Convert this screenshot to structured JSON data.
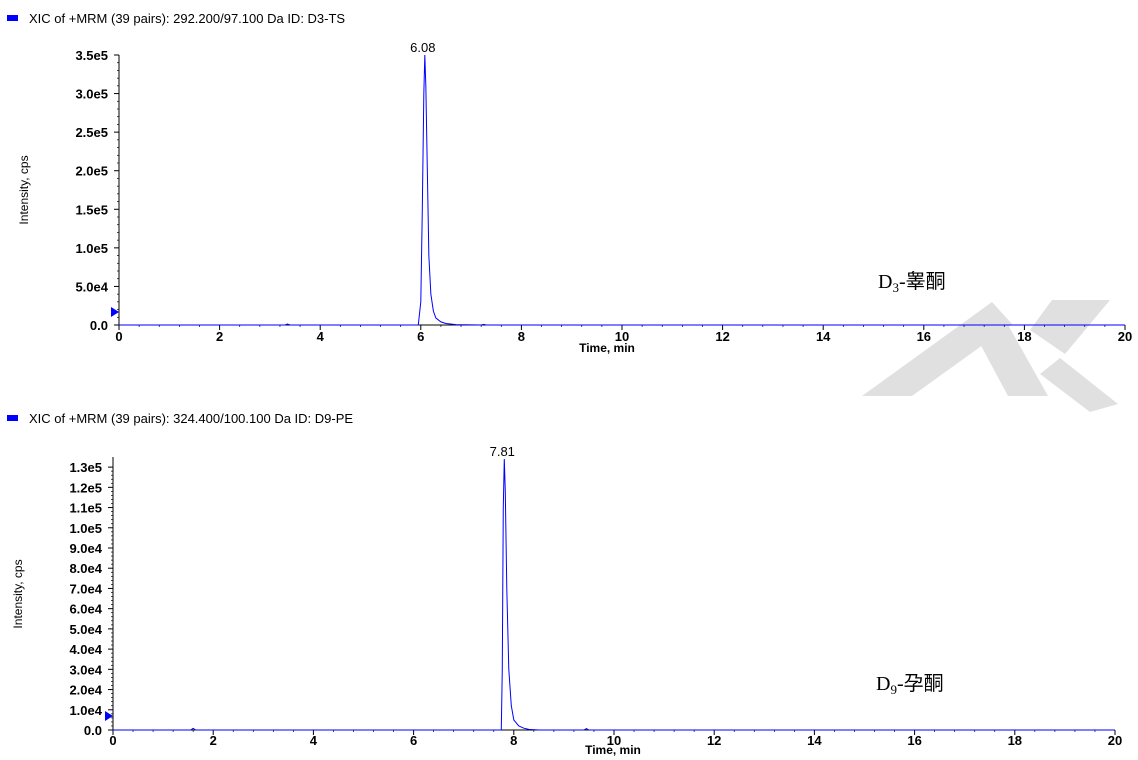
{
  "colors": {
    "trace": "#0000ff",
    "legend": "#0000ff",
    "axis": "#000000",
    "watermark": "#e0e0e0"
  },
  "chart_data": [
    {
      "type": "line",
      "title": "XIC of +MRM (39 pairs): 292.200/97.100 Da ID: D3-TS",
      "xlabel": "Time, min",
      "ylabel": "Intensity, cps",
      "xlim": [
        0,
        20
      ],
      "ylim": [
        0,
        350000
      ],
      "x_ticks": [
        "0",
        "2",
        "4",
        "6",
        "8",
        "10",
        "12",
        "14",
        "16",
        "18",
        "20"
      ],
      "y_ticks": [
        "0.0",
        "5.0e4",
        "1.0e5",
        "1.5e5",
        "2.0e5",
        "2.5e5",
        "3.0e5",
        "3.5e5"
      ],
      "peak_label": "6.08",
      "annotation": {
        "main": "D",
        "sub": "3",
        "rest": "-睾酮"
      },
      "series": [
        {
          "x": [
            0,
            3.3,
            3.35,
            3.4,
            5.95,
            6.0,
            6.03,
            6.06,
            6.08,
            6.1,
            6.13,
            6.16,
            6.2,
            6.25,
            6.3,
            6.4,
            6.5,
            6.7,
            7.2,
            7.25,
            7.3,
            20
          ],
          "y": [
            0,
            0,
            1200,
            0,
            0,
            30000,
            150000,
            300000,
            350000,
            310000,
            200000,
            90000,
            40000,
            18000,
            9000,
            4000,
            2000,
            500,
            0,
            800,
            0,
            0
          ]
        }
      ]
    },
    {
      "type": "line",
      "title": "XIC of +MRM (39 pairs): 324.400/100.100 Da ID: D9-PE",
      "xlabel": "Time, min",
      "ylabel": "Intensity, cps",
      "xlim": [
        0,
        20
      ],
      "ylim": [
        0,
        135000
      ],
      "x_ticks": [
        "0",
        "2",
        "4",
        "6",
        "8",
        "10",
        "12",
        "14",
        "16",
        "18",
        "20"
      ],
      "y_ticks": [
        "0.0",
        "1.0e4",
        "2.0e4",
        "3.0e4",
        "4.0e4",
        "5.0e4",
        "6.0e4",
        "7.0e4",
        "8.0e4",
        "9.0e4",
        "1.0e5",
        "1.1e5",
        "1.2e5",
        "1.3e5"
      ],
      "peak_label": "7.81",
      "annotation": {
        "main": "D",
        "sub": "9",
        "rest": "-孕酮"
      },
      "series": [
        {
          "x": [
            0,
            1.55,
            1.6,
            1.65,
            7.75,
            7.77,
            7.79,
            7.81,
            7.83,
            7.86,
            7.9,
            7.95,
            8.0,
            8.1,
            8.2,
            8.3,
            8.5,
            9.4,
            9.45,
            9.5,
            20
          ],
          "y": [
            0,
            0,
            800,
            0,
            0,
            30000,
            110000,
            134000,
            118000,
            70000,
            30000,
            12000,
            5000,
            2000,
            900,
            300,
            0,
            0,
            700,
            0,
            0
          ]
        }
      ]
    }
  ]
}
